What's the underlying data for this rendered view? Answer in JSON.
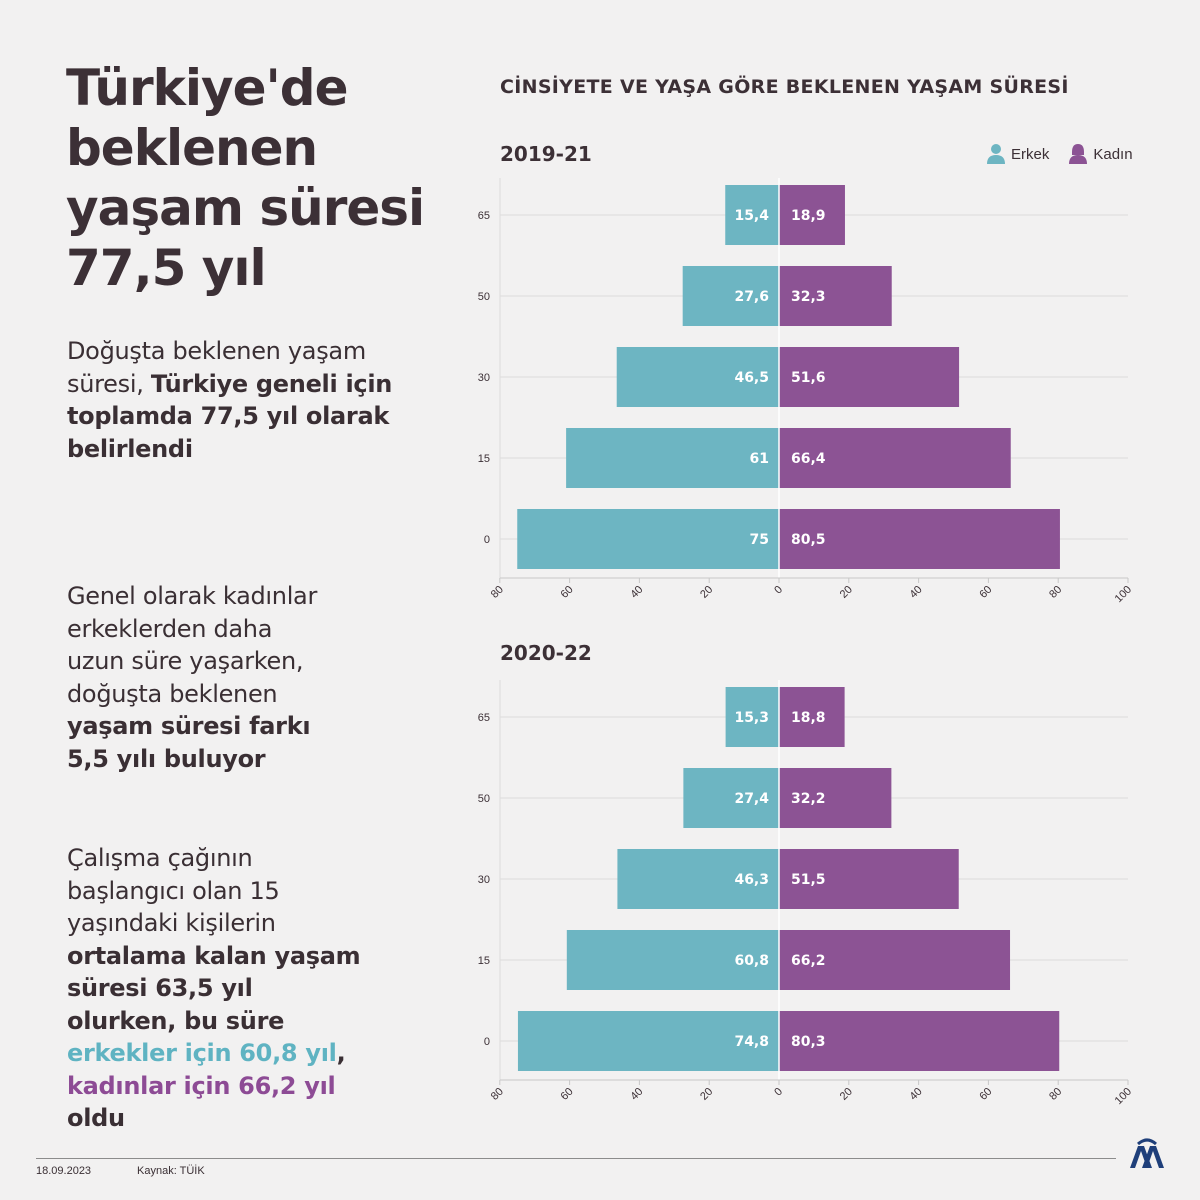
{
  "title": "Türkiye'de beklenen yaşam süresi 77,5 yıl",
  "paragraph1": {
    "plain": "Doğuşta beklenen yaşam süresi, ",
    "bold": "Türkiye geneli için toplamda 77,5 yıl olarak belirlendi"
  },
  "paragraph2": {
    "plain": "Genel olarak kadınlar erkeklerden daha uzun süre yaşarken, doğuşta beklenen ",
    "bold": "yaşam süresi farkı 5,5 yılı buluyor"
  },
  "paragraph3": {
    "plain": "Çalışma çağının başlangıcı olan 15 yaşındaki kişilerin ",
    "bold1": "ortalama kalan yaşam süresi 63,5 yıl olurken, bu süre ",
    "men": "erkekler için 60,8 yıl",
    "comma": ", ",
    "women": "kadınlar için 66,2 yıl",
    "end": " oldu"
  },
  "chart_heading": "CİNSİYETE VE YAŞA GÖRE BEKLENEN YAŞAM SÜRESİ",
  "legend": {
    "men": "Erkek",
    "women": "Kadın"
  },
  "colors": {
    "men": "#6db5c2",
    "women": "#8c5394",
    "text": "#3c3036",
    "grid": "#dcdcdc"
  },
  "chart_data": [
    {
      "type": "bar",
      "orientation": "horizontal-diverging",
      "title": "2019-21",
      "categories": [
        "65",
        "50",
        "30",
        "15",
        "0"
      ],
      "series": [
        {
          "name": "Erkek",
          "values": [
            15.4,
            27.6,
            46.5,
            61,
            75
          ],
          "labels": [
            "15,4",
            "27,6",
            "46,5",
            "61",
            "75"
          ]
        },
        {
          "name": "Kadın",
          "values": [
            18.9,
            32.3,
            51.6,
            66.4,
            80.5
          ],
          "labels": [
            "18,9",
            "32,3",
            "51,6",
            "66,4",
            "80,5"
          ]
        }
      ],
      "x_ticks": [
        "80",
        "60",
        "40",
        "20",
        "0",
        "20",
        "40",
        "60",
        "80",
        "100"
      ],
      "xlim": [
        -80,
        100
      ],
      "grid": true
    },
    {
      "type": "bar",
      "orientation": "horizontal-diverging",
      "title": "2020-22",
      "categories": [
        "65",
        "50",
        "30",
        "15",
        "0"
      ],
      "series": [
        {
          "name": "Erkek",
          "values": [
            15.3,
            27.4,
            46.3,
            60.8,
            74.8
          ],
          "labels": [
            "15,3",
            "27,4",
            "46,3",
            "60,8",
            "74,8"
          ]
        },
        {
          "name": "Kadın",
          "values": [
            18.8,
            32.2,
            51.5,
            66.2,
            80.3
          ],
          "labels": [
            "18,8",
            "32,2",
            "51,5",
            "66,2",
            "80,3"
          ]
        }
      ],
      "x_ticks": [
        "80",
        "60",
        "40",
        "20",
        "0",
        "20",
        "40",
        "60",
        "80",
        "100"
      ],
      "xlim": [
        -80,
        100
      ],
      "grid": true
    }
  ],
  "footer": {
    "date": "18.09.2023",
    "source": "Kaynak: TÜİK"
  },
  "logo_text": "AA"
}
